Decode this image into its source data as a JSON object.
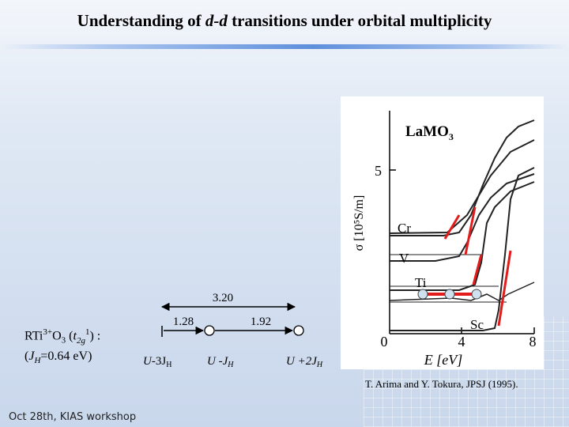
{
  "slide": {
    "title_part1": "Understanding of ",
    "title_italic": "d-d",
    "title_part2": " transitions under orbital multiplicity",
    "footer": "Oct 28th, KIAS workshop",
    "citation": "T. Arima and Y. Tokura, JPSJ (1995)."
  },
  "compound": {
    "line1_rt": "RTi",
    "line1_sup": "3+",
    "line1_o": "O",
    "line1_sub": "3",
    "line1_paren_open": " (",
    "line1_t": "t",
    "line1_t_sub": "2g",
    "line1_t_sup": "1",
    "line1_paren_close": ") :",
    "line2_open": "(",
    "line2_j": "J",
    "line2_j_sub": "H",
    "line2_val": "=0.64 eV)"
  },
  "diagram": {
    "span_total": "3.20",
    "gap_left": "1.28",
    "gap_right": "1.92",
    "levels": [
      {
        "u": "U",
        "op": "-3J",
        "sub": "H",
        "italic_j": false
      },
      {
        "u": "U",
        "op": " -J",
        "sub": "H",
        "italic_j": true
      },
      {
        "u": "U",
        "op": " +2J",
        "sub": "H",
        "italic_j": true
      }
    ]
  },
  "figure": {
    "label": "LaMO",
    "label_sub": "3",
    "ylabel": "σ [10⁵S/m]",
    "y_tick_5": "5",
    "xlabel": "E [eV]",
    "x_ticks": [
      "0",
      "4",
      "8"
    ],
    "curves": [
      "Cr",
      "V",
      "Ti",
      "Sc"
    ],
    "colors": {
      "accent": "#e31b1b",
      "dots": "#cfe1ef"
    }
  }
}
